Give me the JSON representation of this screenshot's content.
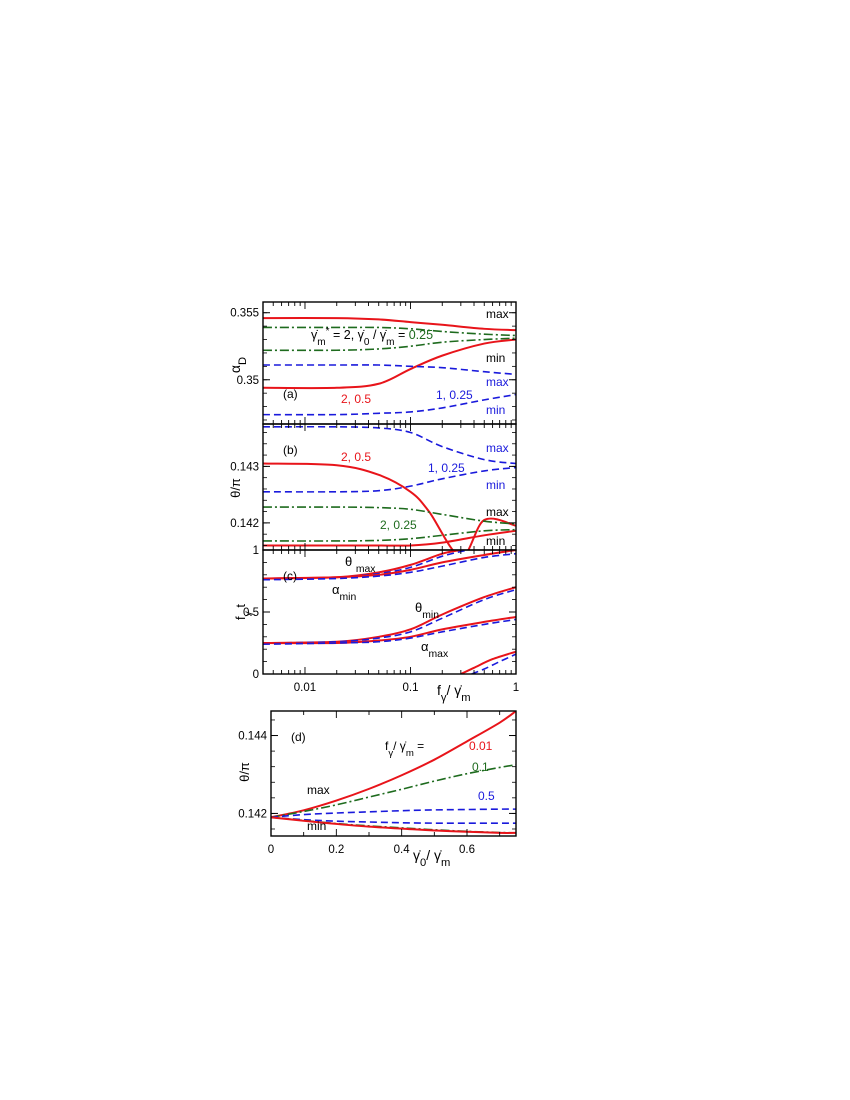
{
  "colors": {
    "red": "#e8141a",
    "green": "#1e6b1e",
    "blue": "#1a1adc",
    "black": "#000000"
  },
  "chart_data": [
    {
      "type": "line",
      "panel_label": "(a)",
      "ylabel": "α",
      "ylabel_sub": "D",
      "x_scale": "log",
      "xlim": [
        0.004,
        1
      ],
      "ylim": [
        0.3467,
        0.3558
      ],
      "y_ticks": [
        {
          "v": 0.35,
          "label": "0.35"
        },
        {
          "v": 0.355,
          "label": "0.355"
        }
      ],
      "annotations": [
        {
          "text": "max",
          "color": "black"
        },
        {
          "text": "min",
          "color": "black"
        },
        {
          "text": "max",
          "color": "blue"
        },
        {
          "text": "min",
          "color": "blue"
        },
        {
          "text": "2, 0.5",
          "color": "red"
        },
        {
          "text": "1, 0.25",
          "color": "blue"
        }
      ],
      "param_label": {
        "pre": "γ̇",
        "sub1": "m",
        "sup1": "*",
        "mid": " = 2, γ̇",
        "sub2": "0",
        "mid2": " / γ̇",
        "sub3": "m",
        "post": " = ",
        "value": "0.25",
        "color": "green"
      },
      "series": [
        {
          "color": "red",
          "style": "solid",
          "x": [
            0.004,
            0.02,
            0.05,
            0.1,
            0.2,
            0.5,
            1
          ],
          "y": [
            0.3546,
            0.3546,
            0.3545,
            0.3543,
            0.3541,
            0.3538,
            0.3537
          ]
        },
        {
          "color": "red",
          "style": "solid",
          "x": [
            0.004,
            0.02,
            0.05,
            0.1,
            0.2,
            0.5,
            1
          ],
          "y": [
            0.3494,
            0.3494,
            0.3497,
            0.3508,
            0.3518,
            0.3527,
            0.353
          ]
        },
        {
          "color": "green",
          "style": "dashdot",
          "x": [
            0.004,
            0.02,
            0.05,
            0.1,
            0.2,
            0.5,
            1
          ],
          "y": [
            0.3539,
            0.3539,
            0.3539,
            0.3538,
            0.3536,
            0.3534,
            0.3533
          ]
        },
        {
          "color": "green",
          "style": "dashdot",
          "x": [
            0.004,
            0.02,
            0.05,
            0.1,
            0.2,
            0.5,
            1
          ],
          "y": [
            0.3522,
            0.3522,
            0.3523,
            0.3525,
            0.3528,
            0.353,
            0.3531
          ]
        },
        {
          "color": "blue",
          "style": "dashed",
          "x": [
            0.004,
            0.02,
            0.05,
            0.1,
            0.2,
            0.5,
            1
          ],
          "y": [
            0.3511,
            0.3511,
            0.3511,
            0.351,
            0.3509,
            0.3506,
            0.3504
          ]
        },
        {
          "color": "blue",
          "style": "dashed",
          "x": [
            0.004,
            0.02,
            0.05,
            0.1,
            0.2,
            0.5,
            1
          ],
          "y": [
            0.3474,
            0.3474,
            0.3475,
            0.3476,
            0.3479,
            0.3485,
            0.3489
          ]
        }
      ]
    },
    {
      "type": "line",
      "panel_label": "(b)",
      "ylabel": "θ/π",
      "x_scale": "log",
      "xlim": [
        0.004,
        1
      ],
      "ylim": [
        0.14152,
        0.14375
      ],
      "y_ticks": [
        {
          "v": 0.142,
          "label": "0.142"
        },
        {
          "v": 0.143,
          "label": "0.143"
        }
      ],
      "annotations": [
        {
          "text": "max",
          "color": "blue"
        },
        {
          "text": "1, 0.25",
          "color": "blue"
        },
        {
          "text": "min",
          "color": "blue"
        },
        {
          "text": "2, 0.5",
          "color": "red"
        },
        {
          "text": "max",
          "color": "black"
        },
        {
          "text": "2, 0.25",
          "color": "green"
        },
        {
          "text": "min",
          "color": "black"
        }
      ],
      "series": [
        {
          "color": "blue",
          "style": "dashed",
          "x": [
            0.004,
            0.02,
            0.05,
            0.1,
            0.2,
            0.5,
            1
          ],
          "y": [
            0.1437,
            0.1437,
            0.14368,
            0.1436,
            0.14335,
            0.14312,
            0.14305
          ]
        },
        {
          "color": "blue",
          "style": "dashed",
          "x": [
            0.004,
            0.02,
            0.05,
            0.1,
            0.2,
            0.5,
            1
          ],
          "y": [
            0.14255,
            0.14255,
            0.14257,
            0.14265,
            0.14278,
            0.14292,
            0.14298
          ]
        },
        {
          "color": "red",
          "style": "solid",
          "x": [
            0.004,
            0.02,
            0.05,
            0.1,
            0.15,
            0.3,
            0.5,
            1
          ],
          "y": [
            0.14305,
            0.14302,
            0.14285,
            0.14255,
            0.1422,
            0.1414,
            0.14205,
            0.14195
          ]
        },
        {
          "color": "red",
          "style": "solid",
          "x": [
            0.004,
            0.02,
            0.05,
            0.1,
            0.2,
            0.5,
            1
          ],
          "y": [
            0.1416,
            0.1416,
            0.1416,
            0.1416,
            0.14165,
            0.14178,
            0.14186
          ]
        },
        {
          "color": "green",
          "style": "dashdot",
          "x": [
            0.004,
            0.02,
            0.05,
            0.1,
            0.2,
            0.5,
            1
          ],
          "y": [
            0.14228,
            0.14228,
            0.14227,
            0.14224,
            0.14215,
            0.14203,
            0.14198
          ]
        },
        {
          "color": "green",
          "style": "dashdot",
          "x": [
            0.004,
            0.02,
            0.05,
            0.1,
            0.2,
            0.5,
            1
          ],
          "y": [
            0.14168,
            0.14168,
            0.14169,
            0.14172,
            0.14178,
            0.14186,
            0.14188
          ]
        }
      ]
    },
    {
      "type": "line",
      "panel_label": "(c)",
      "ylabel": "f",
      "ylabel_sub": "γ",
      "ylabel_post": " t",
      "x_scale": "log",
      "xlim": [
        0.004,
        1
      ],
      "ylim": [
        0,
        1
      ],
      "y_ticks": [
        {
          "v": 0,
          "label": "0"
        },
        {
          "v": 0.5,
          "label": "0.5"
        },
        {
          "v": 1,
          "label": "1"
        }
      ],
      "x_ticks": [
        {
          "v": 0.01,
          "label": "0.01"
        },
        {
          "v": 0.1,
          "label": "0.1"
        },
        {
          "v": 1,
          "label": "1"
        }
      ],
      "xlabel": {
        "pre": "f",
        "sub1": "γ",
        "mid": "/ γ̇",
        "sub2": "m"
      },
      "annotations": [
        {
          "text": "θ",
          "sub": "max",
          "color": "black"
        },
        {
          "text": "α",
          "sub": "min",
          "color": "black"
        },
        {
          "text": "θ",
          "sub": "min",
          "color": "black"
        },
        {
          "text": "α",
          "sub": "max",
          "color": "black"
        }
      ],
      "series": [
        {
          "color": "red",
          "style": "solid",
          "x": [
            0.004,
            0.02,
            0.05,
            0.1,
            0.2,
            0.3
          ],
          "y": [
            0.77,
            0.78,
            0.82,
            0.88,
            0.97,
            1.0
          ]
        },
        {
          "color": "blue",
          "style": "dashed",
          "x": [
            0.004,
            0.02,
            0.05,
            0.1,
            0.2,
            0.35
          ],
          "y": [
            0.77,
            0.78,
            0.81,
            0.86,
            0.95,
            1.0
          ]
        },
        {
          "color": "red",
          "style": "solid",
          "x": [
            0.004,
            0.02,
            0.05,
            0.1,
            0.2,
            0.5,
            1
          ],
          "y": [
            0.77,
            0.78,
            0.8,
            0.84,
            0.9,
            0.96,
            1.0
          ]
        },
        {
          "color": "blue",
          "style": "dashed",
          "x": [
            0.004,
            0.02,
            0.05,
            0.1,
            0.2,
            0.5,
            1
          ],
          "y": [
            0.76,
            0.77,
            0.79,
            0.82,
            0.87,
            0.94,
            0.97
          ]
        },
        {
          "color": "red",
          "style": "solid",
          "x": [
            0.004,
            0.02,
            0.05,
            0.1,
            0.2,
            0.5,
            1
          ],
          "y": [
            0.25,
            0.26,
            0.3,
            0.36,
            0.48,
            0.62,
            0.7
          ]
        },
        {
          "color": "blue",
          "style": "dashed",
          "x": [
            0.004,
            0.02,
            0.05,
            0.1,
            0.2,
            0.5,
            1
          ],
          "y": [
            0.25,
            0.26,
            0.29,
            0.34,
            0.45,
            0.6,
            0.68
          ]
        },
        {
          "color": "red",
          "style": "solid",
          "x": [
            0.004,
            0.02,
            0.05,
            0.1,
            0.2,
            0.5,
            1
          ],
          "y": [
            0.25,
            0.25,
            0.27,
            0.3,
            0.36,
            0.42,
            0.46
          ]
        },
        {
          "color": "blue",
          "style": "dashed",
          "x": [
            0.004,
            0.02,
            0.05,
            0.1,
            0.2,
            0.5,
            1
          ],
          "y": [
            0.24,
            0.25,
            0.26,
            0.29,
            0.34,
            0.4,
            0.44
          ]
        },
        {
          "color": "red",
          "style": "solid",
          "x": [
            0.3,
            0.4,
            0.6,
            1
          ],
          "y": [
            0.0,
            0.05,
            0.12,
            0.18
          ]
        },
        {
          "color": "blue",
          "style": "dashed",
          "x": [
            0.38,
            0.5,
            0.7,
            1
          ],
          "y": [
            0.0,
            0.04,
            0.1,
            0.16
          ]
        }
      ]
    },
    {
      "type": "line",
      "panel_label": "(d)",
      "ylabel": "θ/π",
      "x_scale": "linear",
      "xlim": [
        0,
        0.75
      ],
      "ylim": [
        0.14142,
        0.14463
      ],
      "y_ticks": [
        {
          "v": 0.142,
          "label": "0.142"
        },
        {
          "v": 0.144,
          "label": "0.144"
        }
      ],
      "x_ticks": [
        {
          "v": 0,
          "label": "0"
        },
        {
          "v": 0.2,
          "label": "0.2"
        },
        {
          "v": 0.4,
          "label": "0.4"
        },
        {
          "v": 0.6,
          "label": "0.6"
        }
      ],
      "xlabel": {
        "pre": "γ̇",
        "sub1": "0",
        "mid": "/ γ̇",
        "sub2": "m"
      },
      "legend_title": {
        "pre": "f",
        "sub1": "γ",
        "mid": "/ γ̇",
        "sub2": "m",
        "post": " = "
      },
      "annotations": [
        {
          "text": "0.01",
          "color": "red"
        },
        {
          "text": "0.1",
          "color": "green"
        },
        {
          "text": "0.5",
          "color": "blue"
        },
        {
          "text": "max",
          "color": "black"
        },
        {
          "text": "min",
          "color": "black"
        }
      ],
      "series": [
        {
          "color": "red",
          "style": "solid",
          "x": [
            0,
            0.1,
            0.2,
            0.3,
            0.4,
            0.5,
            0.6,
            0.7,
            0.75
          ],
          "y": [
            0.1419,
            0.14208,
            0.14233,
            0.14263,
            0.14298,
            0.14338,
            0.14385,
            0.14433,
            0.14463
          ]
        },
        {
          "color": "green",
          "style": "dashdot",
          "x": [
            0,
            0.1,
            0.2,
            0.3,
            0.4,
            0.5,
            0.6,
            0.7,
            0.75
          ],
          "y": [
            0.1419,
            0.14205,
            0.14222,
            0.14242,
            0.14262,
            0.14283,
            0.14302,
            0.14318,
            0.14325
          ]
        },
        {
          "color": "blue",
          "style": "dashed",
          "x": [
            0,
            0.1,
            0.2,
            0.3,
            0.4,
            0.5,
            0.6,
            0.7,
            0.75
          ],
          "y": [
            0.1419,
            0.14197,
            0.14201,
            0.14204,
            0.14207,
            0.14209,
            0.1421,
            0.14211,
            0.14211
          ]
        },
        {
          "color": "blue",
          "style": "dashed",
          "x": [
            0,
            0.1,
            0.2,
            0.3,
            0.4,
            0.5,
            0.6,
            0.7,
            0.75
          ],
          "y": [
            0.1419,
            0.14184,
            0.1418,
            0.14178,
            0.14176,
            0.14175,
            0.14175,
            0.14175,
            0.14175
          ]
        },
        {
          "color": "green",
          "style": "dashdot",
          "x": [
            0,
            0.1,
            0.2,
            0.3,
            0.4,
            0.5,
            0.6,
            0.7,
            0.75
          ],
          "y": [
            0.1419,
            0.14182,
            0.14174,
            0.14168,
            0.14163,
            0.14158,
            0.14154,
            0.14151,
            0.1415
          ]
        },
        {
          "color": "red",
          "style": "solid",
          "x": [
            0,
            0.1,
            0.2,
            0.3,
            0.4,
            0.5,
            0.6,
            0.7,
            0.75
          ],
          "y": [
            0.1419,
            0.14181,
            0.14173,
            0.14166,
            0.14161,
            0.14156,
            0.14153,
            0.1415,
            0.1415
          ]
        }
      ]
    }
  ]
}
